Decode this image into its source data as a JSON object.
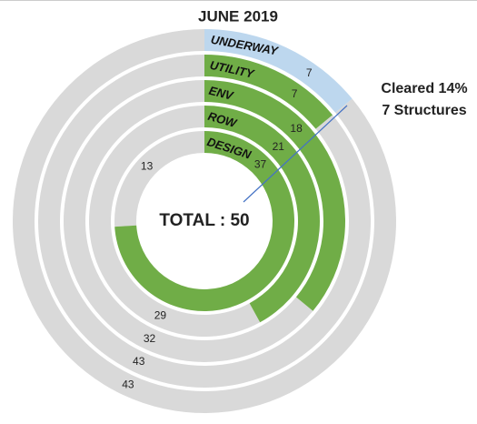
{
  "chart_data": {
    "type": "radial_bar",
    "title": "JUNE 2019",
    "categories": [
      "UNDERWAY",
      "UTILITY",
      "ENV",
      "ROW",
      "DESIGN"
    ],
    "values": [
      7,
      7,
      18,
      21,
      37
    ],
    "remaining_values": [
      43,
      43,
      32,
      29,
      13
    ],
    "colors": [
      "#bdd7ee",
      "#70ad47",
      "#70ad47",
      "#70ad47",
      "#70ad47"
    ],
    "remaining_color": "#d9d9d9",
    "total": 50,
    "center_label": "TOTAL : 50",
    "annotation": [
      "Cleared 14%",
      "7 Structures"
    ]
  }
}
